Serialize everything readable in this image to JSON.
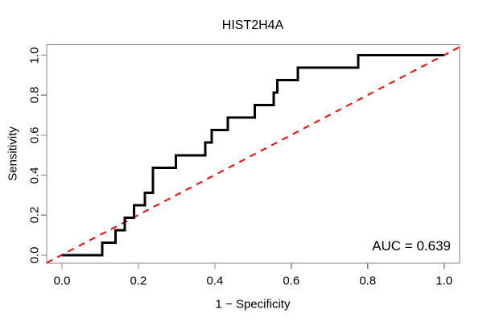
{
  "chart_data": {
    "type": "line",
    "subtype": "roc-step-curve",
    "title": "HIST2H4A",
    "xlabel": "1 − Specificity",
    "ylabel": "Sensitivity",
    "xlim": [
      0,
      1
    ],
    "ylim": [
      0,
      1
    ],
    "grid": false,
    "legend": "none",
    "x_tick_labels": [
      "0.0",
      "0.2",
      "0.4",
      "0.6",
      "0.8",
      "1.0"
    ],
    "y_tick_labels": [
      "0.0",
      "0.2",
      "0.4",
      "0.6",
      "0.8",
      "1.0"
    ],
    "series": [
      {
        "name": "ROC curve",
        "color": "#000000",
        "line_style": "solid-step",
        "points": [
          [
            0,
            0
          ],
          [
            0.105,
            0
          ],
          [
            0.105,
            0.0625
          ],
          [
            0.14,
            0.0625
          ],
          [
            0.14,
            0.125
          ],
          [
            0.164,
            0.125
          ],
          [
            0.164,
            0.1875
          ],
          [
            0.189,
            0.1875
          ],
          [
            0.189,
            0.25
          ],
          [
            0.217,
            0.25
          ],
          [
            0.217,
            0.3125
          ],
          [
            0.238,
            0.3125
          ],
          [
            0.238,
            0.4375
          ],
          [
            0.298,
            0.4375
          ],
          [
            0.298,
            0.5
          ],
          [
            0.375,
            0.5
          ],
          [
            0.375,
            0.5625
          ],
          [
            0.392,
            0.5625
          ],
          [
            0.392,
            0.625
          ],
          [
            0.434,
            0.625
          ],
          [
            0.434,
            0.6875
          ],
          [
            0.505,
            0.6875
          ],
          [
            0.505,
            0.75
          ],
          [
            0.554,
            0.75
          ],
          [
            0.554,
            0.8125
          ],
          [
            0.564,
            0.8125
          ],
          [
            0.564,
            0.875
          ],
          [
            0.617,
            0.875
          ],
          [
            0.617,
            0.9375
          ],
          [
            0.775,
            0.9375
          ],
          [
            0.775,
            1
          ],
          [
            1,
            1
          ]
        ]
      },
      {
        "name": "chance diagonal",
        "color": "#ff0000",
        "line_style": "dashed",
        "points": [
          [
            0,
            0
          ],
          [
            1,
            1
          ]
        ]
      }
    ],
    "annotation": {
      "auc_label": "AUC = 0.639",
      "auc_value": 0.639
    },
    "frame_color": "#858585"
  }
}
